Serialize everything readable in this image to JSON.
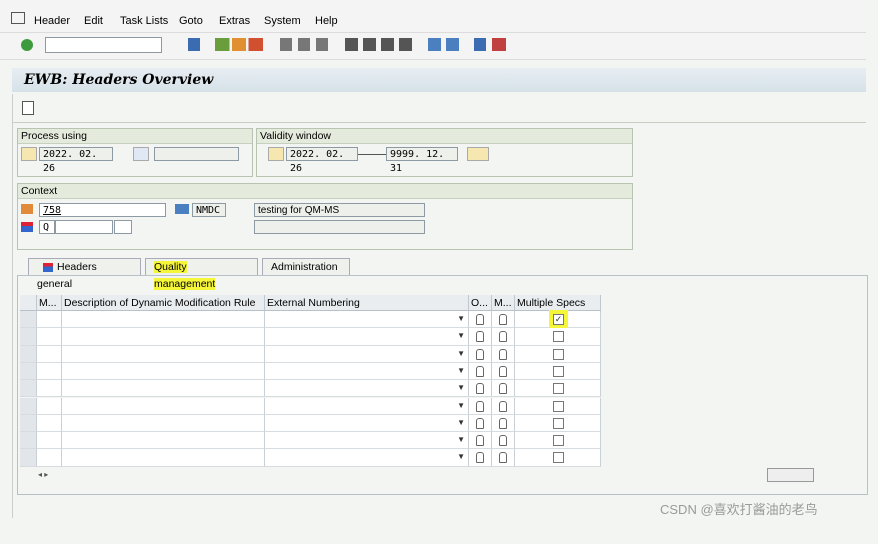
{
  "menu": [
    "Header",
    "Edit",
    "Task Lists",
    "Goto",
    "Extras",
    "System",
    "Help"
  ],
  "title": "EWB: Headers Overview",
  "process_using": {
    "label": "Process using",
    "date": "2022. 02. 26"
  },
  "validity_window": {
    "label": "Validity window",
    "from": "2022. 02. 26",
    "to": "9999. 12. 31"
  },
  "context": {
    "label": "Context",
    "plant": "758",
    "plant_code": "NMDC",
    "description": "testing for QM-MS",
    "usage": "Q"
  },
  "tabs": {
    "items": [
      "Headers general",
      "Quality management",
      "Administration"
    ],
    "active": 1
  },
  "table": {
    "columns": [
      "M...",
      "Description of Dynamic Modification Rule",
      "External Numbering",
      "O...",
      "M...",
      "Multiple Specs"
    ],
    "rows": [
      {
        "multiple_specs": true
      },
      {
        "multiple_specs": false
      },
      {
        "multiple_specs": false
      },
      {
        "multiple_specs": false
      },
      {
        "multiple_specs": false
      },
      {
        "multiple_specs": false
      },
      {
        "multiple_specs": false
      },
      {
        "multiple_specs": false
      },
      {
        "multiple_specs": false
      }
    ]
  },
  "watermark": "CSDN @喜欢打酱油的老鸟"
}
